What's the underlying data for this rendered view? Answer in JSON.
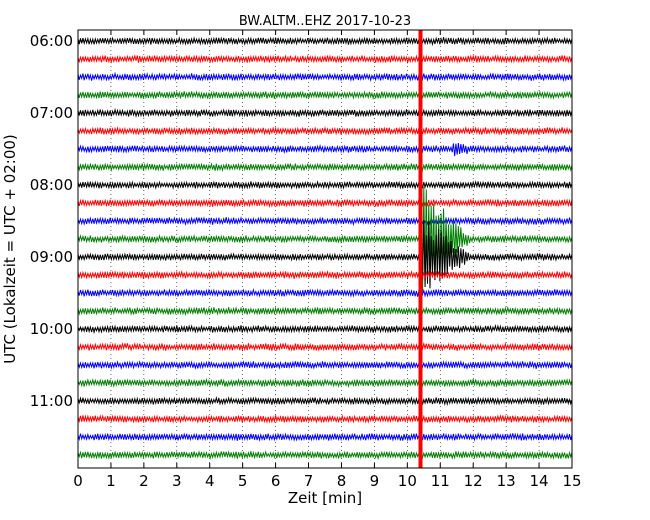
{
  "chart_data": {
    "type": "line",
    "title": "BW.ALTM..EHZ 2017-10-23",
    "xlabel": "Zeit  [min]",
    "ylabel": "UTC (Lokalzeit = UTC + 02:00)",
    "xlim": [
      0,
      15
    ],
    "x_ticks": [
      "0",
      "1",
      "2",
      "3",
      "4",
      "5",
      "6",
      "7",
      "8",
      "9",
      "10",
      "11",
      "12",
      "13",
      "14",
      "15"
    ],
    "y_tick_labels": [
      "06:00",
      "07:00",
      "08:00",
      "09:00",
      "10:00",
      "11:00"
    ],
    "grid": true,
    "trace_start_times": [
      "06:00",
      "06:15",
      "06:30",
      "06:45",
      "07:00",
      "07:15",
      "07:30",
      "07:45",
      "08:00",
      "08:15",
      "08:30",
      "08:45",
      "09:00",
      "09:15",
      "09:30",
      "09:45",
      "10:00",
      "10:15",
      "10:30",
      "10:45",
      "11:00",
      "11:15",
      "11:30",
      "11:45"
    ],
    "trace_colors": [
      "#000000",
      "#ff0000",
      "#0000ff",
      "#008000"
    ],
    "events": [
      {
        "trace_start": "07:30",
        "minute": 11.4,
        "amplitude": 0.35,
        "color": "#0000ff",
        "duration_min": 0.6
      },
      {
        "trace_start": "08:45",
        "minute": 10.4,
        "amplitude": 3.5,
        "color": "#ff0000",
        "duration_min": 1.5
      },
      {
        "trace_start": "09:00",
        "minute": 10.4,
        "amplitude": 2.5,
        "color": "#ff0000",
        "duration_min": 1.5
      }
    ],
    "event_marker": {
      "minute": 10.4,
      "color": "#ff0000"
    }
  }
}
